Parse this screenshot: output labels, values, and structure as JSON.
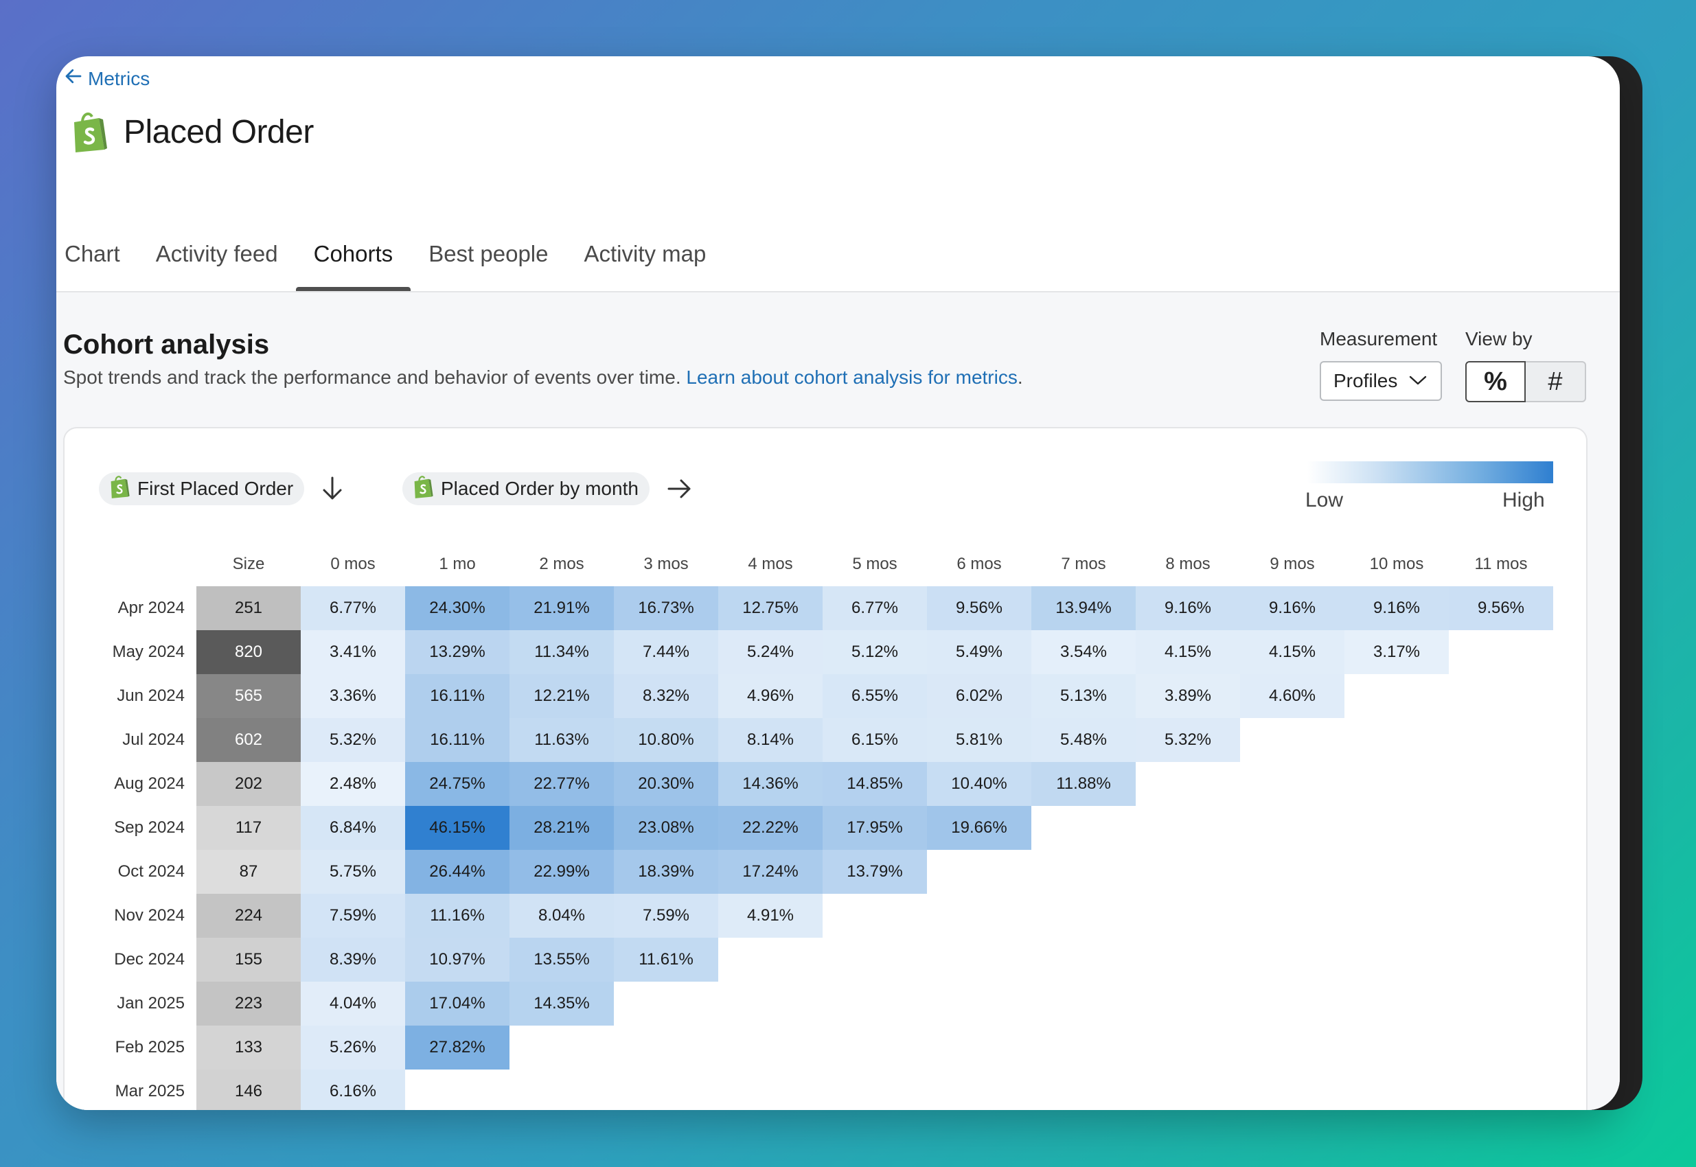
{
  "back_link": {
    "label": "Metrics"
  },
  "page": {
    "title": "Placed Order"
  },
  "tabs": [
    {
      "label": "Chart"
    },
    {
      "label": "Activity feed"
    },
    {
      "label": "Cohorts"
    },
    {
      "label": "Best people"
    },
    {
      "label": "Activity map"
    }
  ],
  "active_tab": "Cohorts",
  "section": {
    "title": "Cohort analysis",
    "description": "Spot trends and track the performance and behavior of events over time. ",
    "link": "Learn about cohort analysis for metrics",
    "link_suffix": "."
  },
  "controls": {
    "measurement_label": "Measurement",
    "measurement_value": "Profiles",
    "view_by_label": "View by",
    "view_by_options": [
      "%",
      "#"
    ],
    "view_by_selected": "%"
  },
  "chips": {
    "row_chip": "First Placed Order",
    "col_chip": "Placed Order by month"
  },
  "legend": {
    "low": "Low",
    "high": "High"
  },
  "colors": {
    "link": "#1f6fb5",
    "heat_low": "#ffffff",
    "heat_high": "#2f7fd0",
    "brand_green": "#7ab648"
  },
  "chart_data": {
    "type": "heatmap",
    "size_header": "Size",
    "columns": [
      "0 mos",
      "1 mo",
      "2 mos",
      "3 mos",
      "4 mos",
      "5 mos",
      "6 mos",
      "7 mos",
      "8 mos",
      "9 mos",
      "10 mos",
      "11 mos"
    ],
    "rows": [
      {
        "label": "Apr 2024",
        "size": "251",
        "values": [
          "6.77%",
          "24.30%",
          "21.91%",
          "16.73%",
          "12.75%",
          "6.77%",
          "9.56%",
          "13.94%",
          "9.16%",
          "9.16%",
          "9.16%",
          "9.56%"
        ]
      },
      {
        "label": "May 2024",
        "size": "820",
        "values": [
          "3.41%",
          "13.29%",
          "11.34%",
          "7.44%",
          "5.24%",
          "5.12%",
          "5.49%",
          "3.54%",
          "4.15%",
          "4.15%",
          "3.17%"
        ]
      },
      {
        "label": "Jun 2024",
        "size": "565",
        "values": [
          "3.36%",
          "16.11%",
          "12.21%",
          "8.32%",
          "4.96%",
          "6.55%",
          "6.02%",
          "5.13%",
          "3.89%",
          "4.60%"
        ]
      },
      {
        "label": "Jul 2024",
        "size": "602",
        "values": [
          "5.32%",
          "16.11%",
          "11.63%",
          "10.80%",
          "8.14%",
          "6.15%",
          "5.81%",
          "5.48%",
          "5.32%"
        ]
      },
      {
        "label": "Aug 2024",
        "size": "202",
        "values": [
          "2.48%",
          "24.75%",
          "22.77%",
          "20.30%",
          "14.36%",
          "14.85%",
          "10.40%",
          "11.88%"
        ]
      },
      {
        "label": "Sep 2024",
        "size": "117",
        "values": [
          "6.84%",
          "46.15%",
          "28.21%",
          "23.08%",
          "22.22%",
          "17.95%",
          "19.66%"
        ]
      },
      {
        "label": "Oct 2024",
        "size": "87",
        "values": [
          "5.75%",
          "26.44%",
          "22.99%",
          "18.39%",
          "17.24%",
          "13.79%"
        ]
      },
      {
        "label": "Nov 2024",
        "size": "224",
        "values": [
          "7.59%",
          "11.16%",
          "8.04%",
          "7.59%",
          "4.91%"
        ]
      },
      {
        "label": "Dec 2024",
        "size": "155",
        "values": [
          "8.39%",
          "10.97%",
          "13.55%",
          "11.61%"
        ]
      },
      {
        "label": "Jan 2025",
        "size": "223",
        "values": [
          "4.04%",
          "17.04%",
          "14.35%"
        ]
      },
      {
        "label": "Feb 2025",
        "size": "133",
        "values": [
          "5.26%",
          "27.82%"
        ]
      },
      {
        "label": "Mar 2025",
        "size": "146",
        "values": [
          "6.16%"
        ]
      }
    ]
  }
}
